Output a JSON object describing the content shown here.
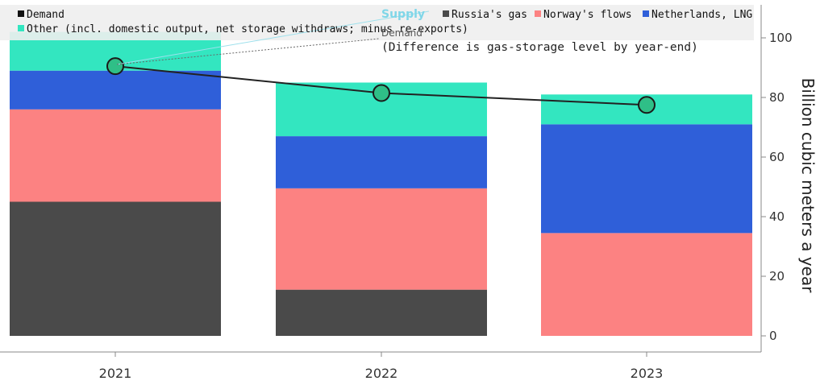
{
  "chart_data": {
    "type": "bar",
    "stacked": true,
    "categories": [
      "2021",
      "2022",
      "2023"
    ],
    "series": [
      {
        "name": "Russia's gas",
        "values": [
          45,
          15.5,
          0
        ],
        "color": "#4a4a4a"
      },
      {
        "name": "Norway's flows",
        "values": [
          31,
          34,
          34.5
        ],
        "color": "#fc8282"
      },
      {
        "name": "Netherlands, LNG",
        "values": [
          13,
          17.5,
          36.5
        ],
        "color": "#2f5fd9"
      },
      {
        "name": "Other (incl. domestic output, net storage withdraws; minus re-exports)",
        "values": [
          13,
          18,
          10
        ],
        "color": "#33e6c0"
      }
    ],
    "line_series": {
      "name": "Demand",
      "values": [
        90.5,
        81.5,
        77.5
      ],
      "color": "#222222",
      "marker_color": "#2fbf87"
    },
    "legend": {
      "demand_label": "Demand",
      "russia_label": "Russia's gas",
      "norway_label": "Norway's flows",
      "netherlands_label": "Netherlands, LNG",
      "other_label": "Other (incl. domestic output, net storage withdraws; minus re-exports)",
      "placement": "top"
    },
    "annotations": {
      "supply": "Supply",
      "demand": "Demand",
      "note": "(Difference is gas-storage level by year-end)"
    },
    "ylabel": "Billion cubic meters a year",
    "ylim": [
      0,
      110
    ],
    "yticks": [
      0,
      20,
      40,
      60,
      80,
      100
    ],
    "y_axis_side": "right",
    "grid": false
  }
}
